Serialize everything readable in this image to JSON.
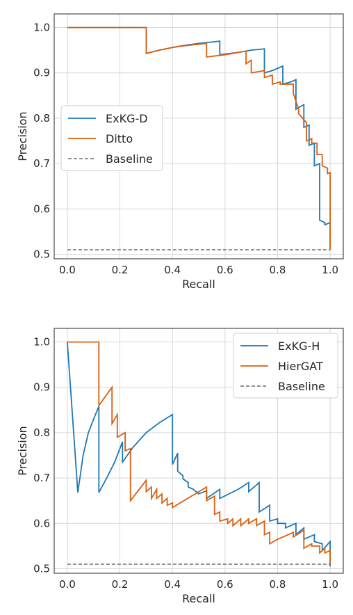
{
  "chart_data": [
    {
      "type": "line",
      "xlabel": "Recall",
      "ylabel": "Precision",
      "xlim": [
        -0.05,
        1.05
      ],
      "ylim": [
        0.49,
        1.03
      ],
      "xticks": [
        "0.0",
        "0.2",
        "0.4",
        "0.6",
        "0.8",
        "1.0"
      ],
      "yticks": [
        "0.5",
        "0.6",
        "0.7",
        "0.8",
        "0.9",
        "1.0"
      ],
      "grid": true,
      "legend_position": "center-left",
      "series": [
        {
          "name": "ExKG-D",
          "color": "#1f77b4",
          "x": [
            0.0,
            0.3,
            0.3,
            0.35,
            0.4,
            0.45,
            0.5,
            0.55,
            0.58,
            0.58,
            0.65,
            0.7,
            0.75,
            0.75,
            0.78,
            0.82,
            0.82,
            0.85,
            0.87,
            0.87,
            0.9,
            0.9,
            0.92,
            0.92,
            0.94,
            0.94,
            0.96,
            0.96,
            0.98,
            0.98,
            1.0,
            1.0
          ],
          "y": [
            1.0,
            1.0,
            0.943,
            0.95,
            0.956,
            0.961,
            0.965,
            0.968,
            0.97,
            0.94,
            0.945,
            0.95,
            0.953,
            0.9,
            0.905,
            0.915,
            0.875,
            0.88,
            0.885,
            0.82,
            0.83,
            0.78,
            0.785,
            0.74,
            0.745,
            0.695,
            0.7,
            0.575,
            0.57,
            0.565,
            0.57,
            0.51
          ]
        },
        {
          "name": "Ditto",
          "color": "#d95f0e",
          "x": [
            0.0,
            0.3,
            0.3,
            0.35,
            0.4,
            0.45,
            0.53,
            0.53,
            0.6,
            0.68,
            0.68,
            0.7,
            0.7,
            0.75,
            0.75,
            0.78,
            0.78,
            0.81,
            0.81,
            0.86,
            0.86,
            0.88,
            0.88,
            0.91,
            0.91,
            0.93,
            0.93,
            0.95,
            0.95,
            0.97,
            0.97,
            0.99,
            0.99,
            1.0,
            1.0
          ],
          "y": [
            1.0,
            1.0,
            0.943,
            0.95,
            0.956,
            0.96,
            0.965,
            0.935,
            0.94,
            0.948,
            0.92,
            0.928,
            0.9,
            0.905,
            0.89,
            0.895,
            0.875,
            0.88,
            0.875,
            0.875,
            0.855,
            0.82,
            0.81,
            0.79,
            0.75,
            0.755,
            0.745,
            0.745,
            0.72,
            0.72,
            0.695,
            0.69,
            0.678,
            0.68,
            0.51
          ]
        },
        {
          "name": "Baseline",
          "color": "#808080",
          "dashed": true,
          "x": [
            0.0,
            1.0
          ],
          "y": [
            0.51,
            0.51
          ]
        }
      ]
    },
    {
      "type": "line",
      "xlabel": "Recall",
      "ylabel": "Precision",
      "xlim": [
        -0.05,
        1.05
      ],
      "ylim": [
        0.49,
        1.03
      ],
      "xticks": [
        "0.0",
        "0.2",
        "0.4",
        "0.6",
        "0.8",
        "1.0"
      ],
      "yticks": [
        "0.5",
        "0.6",
        "0.7",
        "0.8",
        "0.9",
        "1.0"
      ],
      "grid": true,
      "legend_position": "top-right",
      "series": [
        {
          "name": "ExKG-H",
          "color": "#1f77b4",
          "x": [
            0.0,
            0.04,
            0.06,
            0.08,
            0.1,
            0.12,
            0.12,
            0.15,
            0.18,
            0.21,
            0.21,
            0.25,
            0.3,
            0.35,
            0.4,
            0.4,
            0.42,
            0.42,
            0.44,
            0.44,
            0.46,
            0.46,
            0.48,
            0.5,
            0.53,
            0.53,
            0.58,
            0.58,
            0.65,
            0.69,
            0.69,
            0.73,
            0.73,
            0.77,
            0.77,
            0.8,
            0.8,
            0.83,
            0.83,
            0.87,
            0.87,
            0.9,
            0.9,
            0.94,
            0.94,
            0.97,
            0.97,
            1.0,
            1.0
          ],
          "y": [
            1.0,
            0.668,
            0.75,
            0.8,
            0.83,
            0.858,
            0.668,
            0.7,
            0.735,
            0.78,
            0.735,
            0.768,
            0.8,
            0.822,
            0.84,
            0.73,
            0.755,
            0.715,
            0.705,
            0.698,
            0.69,
            0.68,
            0.675,
            0.665,
            0.672,
            0.655,
            0.675,
            0.655,
            0.675,
            0.69,
            0.67,
            0.69,
            0.625,
            0.64,
            0.605,
            0.61,
            0.6,
            0.6,
            0.59,
            0.6,
            0.575,
            0.59,
            0.565,
            0.575,
            0.56,
            0.555,
            0.54,
            0.56,
            0.505
          ]
        },
        {
          "name": "HierGAT",
          "color": "#d95f0e",
          "x": [
            0.0,
            0.12,
            0.12,
            0.17,
            0.17,
            0.19,
            0.19,
            0.22,
            0.22,
            0.24,
            0.24,
            0.3,
            0.3,
            0.32,
            0.32,
            0.34,
            0.34,
            0.36,
            0.36,
            0.38,
            0.38,
            0.4,
            0.4,
            0.53,
            0.53,
            0.56,
            0.56,
            0.58,
            0.58,
            0.61,
            0.61,
            0.63,
            0.63,
            0.66,
            0.66,
            0.69,
            0.69,
            0.72,
            0.72,
            0.75,
            0.75,
            0.77,
            0.77,
            0.8,
            0.8,
            0.82,
            0.82,
            0.86,
            0.86,
            0.9,
            0.9,
            0.93,
            0.93,
            0.96,
            0.96,
            0.98,
            0.98,
            1.0,
            1.0
          ],
          "y": [
            1.0,
            1.0,
            0.86,
            0.9,
            0.82,
            0.84,
            0.79,
            0.8,
            0.76,
            0.765,
            0.65,
            0.695,
            0.67,
            0.68,
            0.655,
            0.675,
            0.655,
            0.665,
            0.645,
            0.655,
            0.64,
            0.645,
            0.635,
            0.68,
            0.65,
            0.66,
            0.62,
            0.625,
            0.605,
            0.61,
            0.6,
            0.61,
            0.595,
            0.61,
            0.595,
            0.61,
            0.6,
            0.61,
            0.595,
            0.605,
            0.575,
            0.58,
            0.555,
            0.565,
            0.565,
            0.57,
            0.57,
            0.58,
            0.57,
            0.585,
            0.545,
            0.555,
            0.55,
            0.55,
            0.535,
            0.545,
            0.535,
            0.54,
            0.51
          ]
        },
        {
          "name": "Baseline",
          "color": "#808080",
          "dashed": true,
          "x": [
            0.0,
            1.0
          ],
          "y": [
            0.51,
            0.51
          ]
        }
      ]
    }
  ]
}
